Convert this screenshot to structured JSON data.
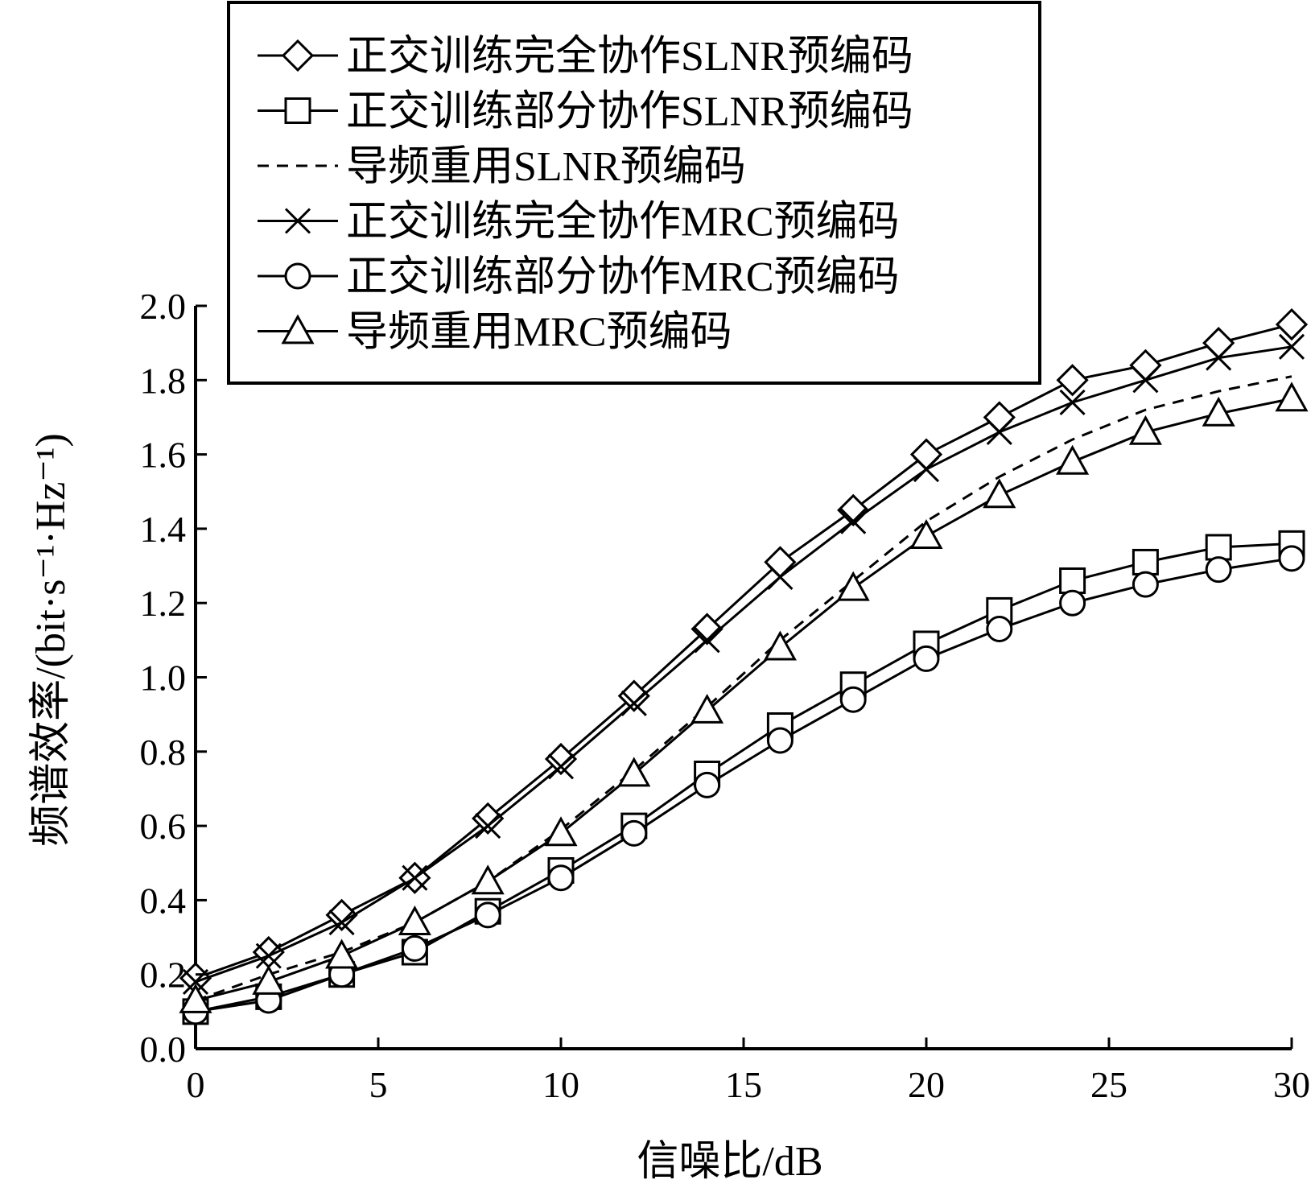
{
  "chart_data": {
    "type": "line",
    "title": "",
    "xlabel": "信噪比/dB",
    "ylabel": "频谱效率/(bit·s⁻¹·Hz⁻¹)",
    "xlim": [
      0,
      30
    ],
    "ylim": [
      0,
      2.0
    ],
    "xticks": [
      "0",
      "5",
      "10",
      "15",
      "20",
      "25",
      "30"
    ],
    "yticks": [
      "0.0",
      "0.2",
      "0.4",
      "0.6",
      "0.8",
      "1.0",
      "1.2",
      "1.4",
      "1.6",
      "1.8",
      "2.0"
    ],
    "grid": false,
    "legend_position": "top",
    "x": [
      0,
      2,
      4,
      6,
      8,
      10,
      12,
      14,
      16,
      18,
      20,
      22,
      24,
      26,
      28,
      30
    ],
    "series": [
      {
        "name": "正交训练完全协作SLNR预编码",
        "marker": "diamond",
        "dash": "solid",
        "values": [
          0.19,
          0.26,
          0.36,
          0.46,
          0.62,
          0.78,
          0.95,
          1.13,
          1.31,
          1.45,
          1.6,
          1.7,
          1.8,
          1.84,
          1.9,
          1.95
        ]
      },
      {
        "name": "正交训练部分协作SLNR预编码",
        "marker": "square",
        "dash": "solid",
        "values": [
          0.1,
          0.14,
          0.2,
          0.26,
          0.37,
          0.48,
          0.6,
          0.74,
          0.87,
          0.98,
          1.09,
          1.18,
          1.26,
          1.31,
          1.35,
          1.36
        ]
      },
      {
        "name": "导频重用SLNR预编码",
        "marker": "none",
        "dash": "dashed",
        "values": [
          0.13,
          0.2,
          0.26,
          0.34,
          0.45,
          0.59,
          0.75,
          0.92,
          1.1,
          1.26,
          1.42,
          1.54,
          1.64,
          1.72,
          1.77,
          1.81
        ]
      },
      {
        "name": "正交训练完全协作MRC预编码",
        "marker": "x",
        "dash": "solid",
        "values": [
          0.18,
          0.25,
          0.34,
          0.46,
          0.6,
          0.76,
          0.93,
          1.1,
          1.27,
          1.42,
          1.56,
          1.66,
          1.74,
          1.8,
          1.86,
          1.89
        ]
      },
      {
        "name": "正交训练部分协作MRC预编码",
        "marker": "circle",
        "dash": "solid",
        "values": [
          0.1,
          0.13,
          0.2,
          0.27,
          0.36,
          0.46,
          0.58,
          0.71,
          0.83,
          0.94,
          1.05,
          1.13,
          1.2,
          1.25,
          1.29,
          1.32
        ]
      },
      {
        "name": "导频重用MRC预编码",
        "marker": "triangle",
        "dash": "solid",
        "values": [
          0.13,
          0.18,
          0.25,
          0.34,
          0.45,
          0.58,
          0.74,
          0.91,
          1.08,
          1.24,
          1.38,
          1.49,
          1.58,
          1.66,
          1.71,
          1.75
        ]
      }
    ]
  }
}
